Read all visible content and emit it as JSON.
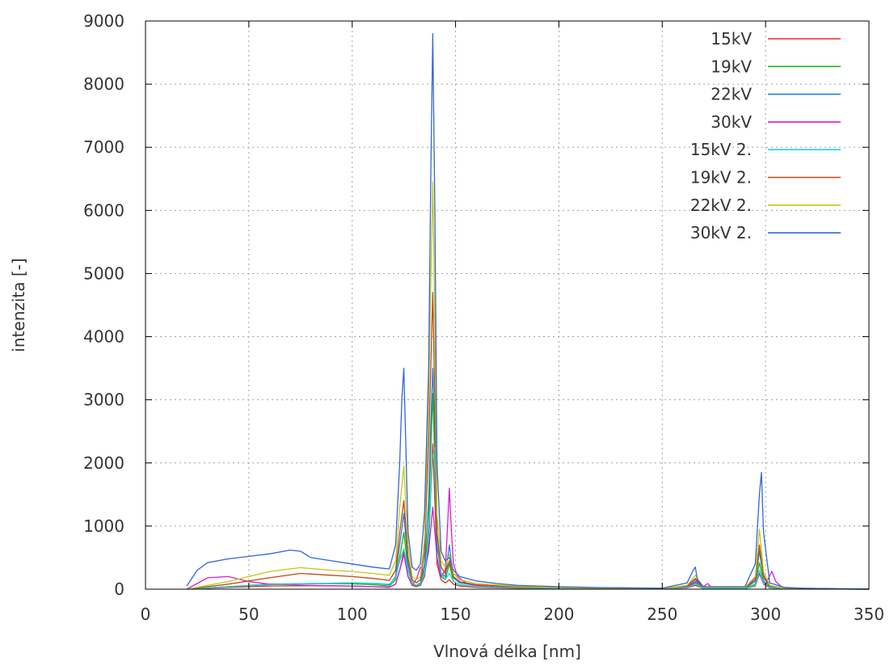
{
  "chart_data": {
    "type": "line",
    "title": "",
    "xlabel": "Vlnová délka [nm]",
    "ylabel": "intenzita [-]",
    "xlim": [
      0,
      350
    ],
    "ylim": [
      0,
      9000
    ],
    "xticks": [
      0,
      50,
      100,
      150,
      200,
      250,
      300,
      350
    ],
    "yticks": [
      0,
      1000,
      2000,
      3000,
      4000,
      5000,
      6000,
      7000,
      8000,
      9000
    ],
    "grid": true,
    "legend_position": "top-right",
    "series": [
      {
        "name": "15kV",
        "color": "#e8262a",
        "x": [
          20,
          40,
          60,
          80,
          100,
          110,
          118,
          121,
          123,
          125,
          127,
          129,
          131,
          133,
          135,
          137,
          138,
          139,
          140,
          141,
          143,
          145,
          147,
          149,
          152,
          160,
          180,
          200,
          250,
          262,
          266,
          270,
          290,
          295,
          297,
          299,
          302,
          310,
          350
        ],
        "y": [
          0,
          30,
          50,
          55,
          50,
          40,
          30,
          80,
          300,
          600,
          200,
          60,
          40,
          60,
          200,
          700,
          1500,
          2300,
          1400,
          400,
          150,
          100,
          150,
          80,
          50,
          30,
          15,
          10,
          5,
          20,
          60,
          10,
          10,
          50,
          250,
          80,
          20,
          5,
          0
        ]
      },
      {
        "name": "19kV",
        "color": "#1ab31a",
        "x": [
          20,
          40,
          60,
          80,
          100,
          110,
          118,
          121,
          123,
          125,
          127,
          129,
          131,
          133,
          135,
          137,
          138,
          139,
          140,
          141,
          143,
          145,
          147,
          149,
          152,
          160,
          180,
          200,
          250,
          262,
          266,
          270,
          290,
          295,
          297,
          299,
          302,
          310,
          350
        ],
        "y": [
          0,
          40,
          80,
          90,
          85,
          70,
          50,
          150,
          500,
          900,
          300,
          80,
          50,
          80,
          300,
          1000,
          2200,
          3100,
          2000,
          500,
          200,
          150,
          400,
          120,
          70,
          40,
          20,
          12,
          6,
          30,
          100,
          15,
          15,
          80,
          420,
          120,
          30,
          5,
          0
        ]
      },
      {
        "name": "22kV",
        "color": "#1f7fe0",
        "x": [
          20,
          40,
          60,
          80,
          100,
          110,
          118,
          121,
          123,
          125,
          127,
          129,
          131,
          133,
          135,
          137,
          138,
          139,
          140,
          141,
          143,
          145,
          147,
          149,
          152,
          160,
          180,
          200,
          250,
          262,
          266,
          270,
          290,
          295,
          297,
          299,
          302,
          310,
          350
        ],
        "y": [
          0,
          40,
          70,
          90,
          100,
          90,
          70,
          200,
          700,
          1200,
          400,
          100,
          60,
          100,
          400,
          1400,
          2600,
          3500,
          2500,
          700,
          250,
          200,
          700,
          180,
          100,
          60,
          30,
          20,
          10,
          40,
          150,
          20,
          20,
          120,
          600,
          180,
          40,
          5,
          0
        ]
      },
      {
        "name": "30kV",
        "color": "#d21fd2",
        "x": [
          20,
          30,
          40,
          50,
          60,
          80,
          100,
          110,
          118,
          121,
          123,
          125,
          127,
          129,
          131,
          133,
          135,
          137,
          139,
          141,
          143,
          145,
          146,
          147,
          148,
          149,
          151,
          155,
          160,
          180,
          200,
          250,
          262,
          266,
          270,
          272,
          274,
          290,
          297,
          300,
          303,
          305,
          308,
          320,
          350
        ],
        "y": [
          0,
          180,
          200,
          120,
          80,
          60,
          50,
          40,
          30,
          80,
          300,
          550,
          200,
          80,
          150,
          350,
          250,
          600,
          1300,
          500,
          200,
          300,
          900,
          1600,
          900,
          400,
          200,
          100,
          60,
          30,
          20,
          10,
          30,
          120,
          40,
          90,
          20,
          20,
          250,
          80,
          280,
          120,
          30,
          10,
          0
        ]
      },
      {
        "name": "15kV 2.",
        "color": "#19d9d9",
        "x": [
          20,
          40,
          60,
          80,
          100,
          110,
          118,
          121,
          123,
          125,
          127,
          129,
          131,
          133,
          135,
          137,
          138,
          139,
          140,
          141,
          143,
          145,
          147,
          149,
          152,
          160,
          180,
          200,
          250,
          262,
          266,
          270,
          290,
          295,
          297,
          299,
          302,
          310,
          350
        ],
        "y": [
          0,
          40,
          70,
          90,
          100,
          95,
          80,
          180,
          450,
          640,
          300,
          90,
          60,
          80,
          250,
          800,
          1500,
          2100,
          2250,
          900,
          250,
          150,
          250,
          120,
          70,
          40,
          20,
          12,
          6,
          25,
          80,
          12,
          12,
          60,
          300,
          90,
          25,
          5,
          0
        ]
      },
      {
        "name": "19kV 2.",
        "color": "#c0490f",
        "x": [
          20,
          40,
          60,
          75,
          90,
          100,
          110,
          118,
          121,
          123,
          125,
          127,
          129,
          131,
          133,
          135,
          137,
          138,
          139,
          140,
          141,
          143,
          145,
          147,
          149,
          152,
          160,
          180,
          200,
          250,
          262,
          266,
          270,
          290,
          295,
          297,
          299,
          302,
          310,
          350
        ],
        "y": [
          0,
          80,
          180,
          250,
          220,
          200,
          170,
          140,
          300,
          900,
          1400,
          500,
          150,
          100,
          150,
          600,
          2300,
          3500,
          4700,
          3000,
          900,
          350,
          250,
          450,
          200,
          120,
          70,
          35,
          20,
          10,
          50,
          170,
          25,
          25,
          150,
          700,
          220,
          50,
          10,
          0
        ]
      },
      {
        "name": "22kV 2.",
        "color": "#c7c714",
        "x": [
          20,
          40,
          60,
          75,
          90,
          100,
          110,
          118,
          121,
          123,
          125,
          127,
          129,
          131,
          133,
          135,
          137,
          138,
          139,
          140,
          141,
          143,
          145,
          147,
          149,
          152,
          160,
          180,
          200,
          250,
          262,
          266,
          270,
          290,
          295,
          297,
          299,
          302,
          310,
          350
        ],
        "y": [
          0,
          120,
          280,
          340,
          300,
          280,
          250,
          220,
          450,
          1300,
          1950,
          700,
          200,
          150,
          200,
          800,
          3000,
          4800,
          6450,
          4200,
          1200,
          450,
          350,
          550,
          250,
          150,
          90,
          45,
          25,
          12,
          60,
          220,
          30,
          30,
          200,
          950,
          280,
          60,
          10,
          0
        ]
      },
      {
        "name": "30kV 2.",
        "color": "#3366d6",
        "x": [
          20,
          25,
          30,
          40,
          50,
          60,
          70,
          75,
          80,
          90,
          100,
          110,
          115,
          118,
          121,
          123,
          124,
          125,
          126,
          127,
          129,
          131,
          133,
          135,
          137,
          138,
          139,
          140,
          141,
          143,
          145,
          147,
          149,
          152,
          160,
          170,
          180,
          200,
          220,
          250,
          262,
          265,
          266,
          267,
          270,
          290,
          295,
          297,
          298,
          299,
          302,
          310,
          350
        ],
        "y": [
          50,
          300,
          420,
          480,
          520,
          560,
          620,
          600,
          500,
          450,
          400,
          350,
          330,
          320,
          700,
          2000,
          3000,
          3500,
          2200,
          900,
          350,
          300,
          400,
          1200,
          3500,
          6500,
          8800,
          6000,
          2000,
          600,
          450,
          500,
          300,
          200,
          130,
          90,
          60,
          40,
          25,
          15,
          100,
          300,
          350,
          150,
          40,
          40,
          400,
          1500,
          1850,
          900,
          100,
          20,
          0
        ]
      }
    ]
  }
}
